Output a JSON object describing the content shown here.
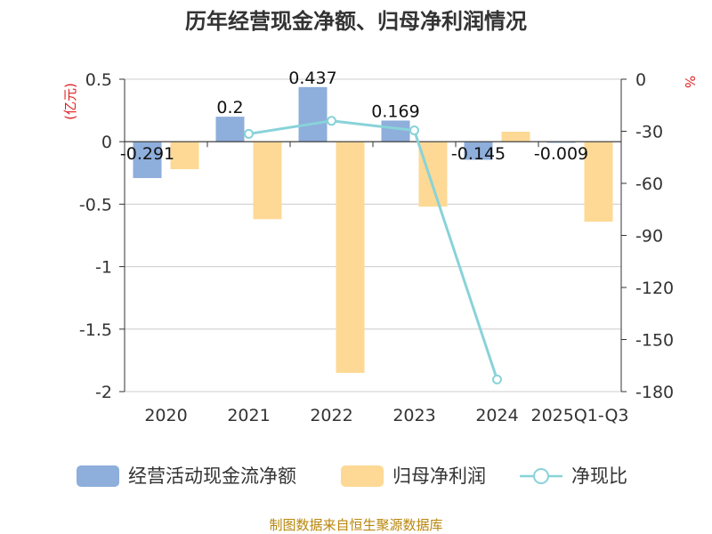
{
  "chart_data": {
    "type": "bar",
    "title": "历年经营现金净额、归母净利润情况",
    "categories": [
      "2020",
      "2021",
      "2022",
      "2023",
      "2024",
      "2025Q1-Q3"
    ],
    "series": [
      {
        "name": "经营活动现金流净额",
        "axis": "left",
        "kind": "bar",
        "color": "#8eaedb",
        "values": [
          -0.291,
          0.2,
          0.437,
          0.169,
          -0.145,
          -0.009
        ],
        "labels": [
          "-0.291",
          "0.2",
          "0.437",
          "0.169",
          "-0.145",
          "-0.009"
        ]
      },
      {
        "name": "归母净利润",
        "axis": "left",
        "kind": "bar",
        "color": "#fdd995",
        "values": [
          -0.22,
          -0.62,
          -1.85,
          -0.52,
          0.08,
          -0.64
        ]
      },
      {
        "name": "净现比",
        "axis": "right",
        "kind": "line",
        "color": "#88d3d9",
        "values": [
          null,
          -31.5,
          -24,
          -29.5,
          -173,
          null
        ]
      }
    ],
    "ylabel": "(亿元)",
    "y2label": "%",
    "ylim": [
      -2,
      0.5
    ],
    "y_ticks": [
      "0.5",
      "0",
      "-0.5",
      "-1",
      "-1.5",
      "-2"
    ],
    "y2lim": [
      -180,
      0
    ],
    "y2_ticks": [
      "0",
      "-30",
      "-60",
      "-90",
      "-120",
      "-150",
      "-180"
    ],
    "legend": "bottom",
    "grid": true
  },
  "source": "制图数据来自恒生聚源数据库"
}
